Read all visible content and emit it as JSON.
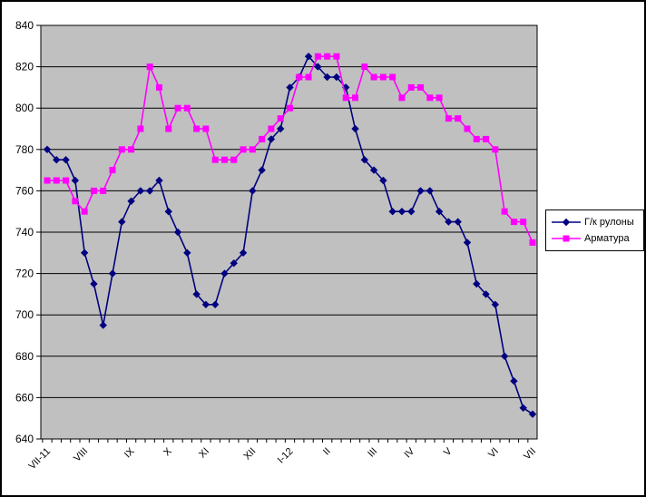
{
  "chart_data": {
    "type": "line",
    "title": "",
    "plot_bg_color": "#C0C0C0",
    "outer_bg_color": "#FFFFFF",
    "grid_color": "#000000",
    "axis_color": "#000000",
    "grid": "horizontal",
    "ylim": [
      640,
      840
    ],
    "y_ticks": [
      640,
      660,
      680,
      700,
      720,
      740,
      760,
      780,
      800,
      820,
      840
    ],
    "n_points": 53,
    "x_tick_labels": [
      {
        "index": 0,
        "label": "VII-11"
      },
      {
        "index": 4,
        "label": "VIII"
      },
      {
        "index": 9,
        "label": "IX"
      },
      {
        "index": 13,
        "label": "X"
      },
      {
        "index": 17,
        "label": "XI"
      },
      {
        "index": 22,
        "label": "XII"
      },
      {
        "index": 26,
        "label": "I-12"
      },
      {
        "index": 30,
        "label": "II"
      },
      {
        "index": 35,
        "label": "III"
      },
      {
        "index": 39,
        "label": "IV"
      },
      {
        "index": 43,
        "label": "V"
      },
      {
        "index": 48,
        "label": "VI"
      },
      {
        "index": 52,
        "label": "VII"
      }
    ],
    "legend": {
      "position": "right"
    },
    "series": [
      {
        "name": "Г/к рулоны",
        "color": "#000080",
        "marker": "diamond",
        "values": [
          780,
          775,
          775,
          765,
          730,
          715,
          695,
          720,
          745,
          755,
          760,
          760,
          765,
          750,
          740,
          730,
          710,
          705,
          705,
          720,
          725,
          730,
          760,
          770,
          785,
          790,
          810,
          815,
          825,
          820,
          815,
          815,
          810,
          790,
          775,
          770,
          765,
          750,
          750,
          750,
          760,
          760,
          750,
          745,
          745,
          735,
          715,
          710,
          705,
          680,
          668,
          655,
          652
        ]
      },
      {
        "name": "Арматура",
        "color": "#FF00FF",
        "marker": "square",
        "values": [
          765,
          765,
          765,
          755,
          750,
          760,
          760,
          770,
          780,
          780,
          790,
          820,
          810,
          790,
          800,
          800,
          790,
          790,
          775,
          775,
          775,
          780,
          780,
          785,
          790,
          795,
          800,
          815,
          815,
          825,
          825,
          825,
          805,
          805,
          820,
          815,
          815,
          815,
          805,
          810,
          810,
          805,
          805,
          795,
          795,
          790,
          785,
          785,
          780,
          750,
          745,
          745,
          735
        ]
      }
    ]
  }
}
